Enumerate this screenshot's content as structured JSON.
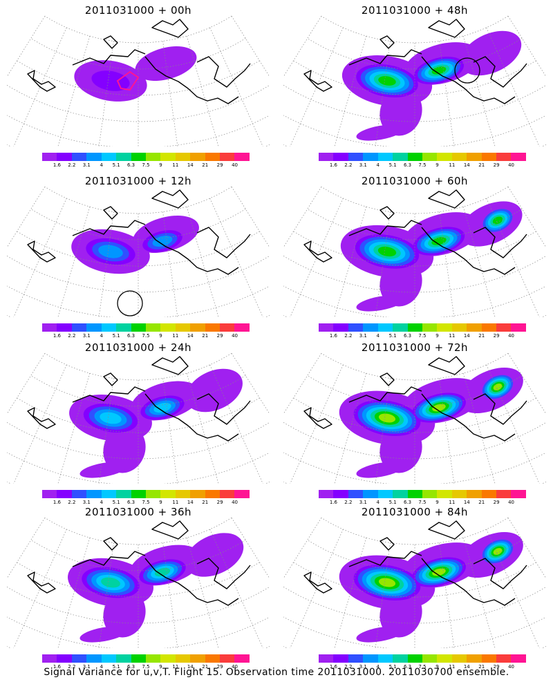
{
  "colorbar": {
    "colors": [
      "#a020f0",
      "#8400ff",
      "#3050ff",
      "#0096ff",
      "#00c8ff",
      "#00d2a0",
      "#00d200",
      "#96e600",
      "#d2e600",
      "#e6c800",
      "#f0a000",
      "#fa7800",
      "#fa3c3c",
      "#ff1493"
    ],
    "labels": [
      "1.6",
      "2.2",
      "3.1",
      "4",
      "5.1",
      "6.3",
      "7.5",
      "9",
      "11",
      "14",
      "21",
      "29",
      "40"
    ]
  },
  "panels": [
    {
      "title": "2011031000 + 00h",
      "level": 0.2,
      "marker": "square"
    },
    {
      "title": "2011031000 + 48h",
      "level": 0.8,
      "marker": "circle-ne"
    },
    {
      "title": "2011031000 + 12h",
      "level": 0.4,
      "marker": "circle-s"
    },
    {
      "title": "2011031000 + 60h",
      "level": 0.9,
      "marker": "none"
    },
    {
      "title": "2011031000 + 24h",
      "level": 0.55,
      "marker": "none"
    },
    {
      "title": "2011031000 + 72h",
      "level": 1.0,
      "marker": "none"
    },
    {
      "title": "2011031000 + 36h",
      "level": 0.65,
      "marker": "none"
    },
    {
      "title": "2011031000 + 84h",
      "level": 1.0,
      "marker": "none"
    }
  ],
  "footer": "Signal Variance for u,v,T. Flight 15. Observation time 2011031000. 2011030700 ensemble."
}
